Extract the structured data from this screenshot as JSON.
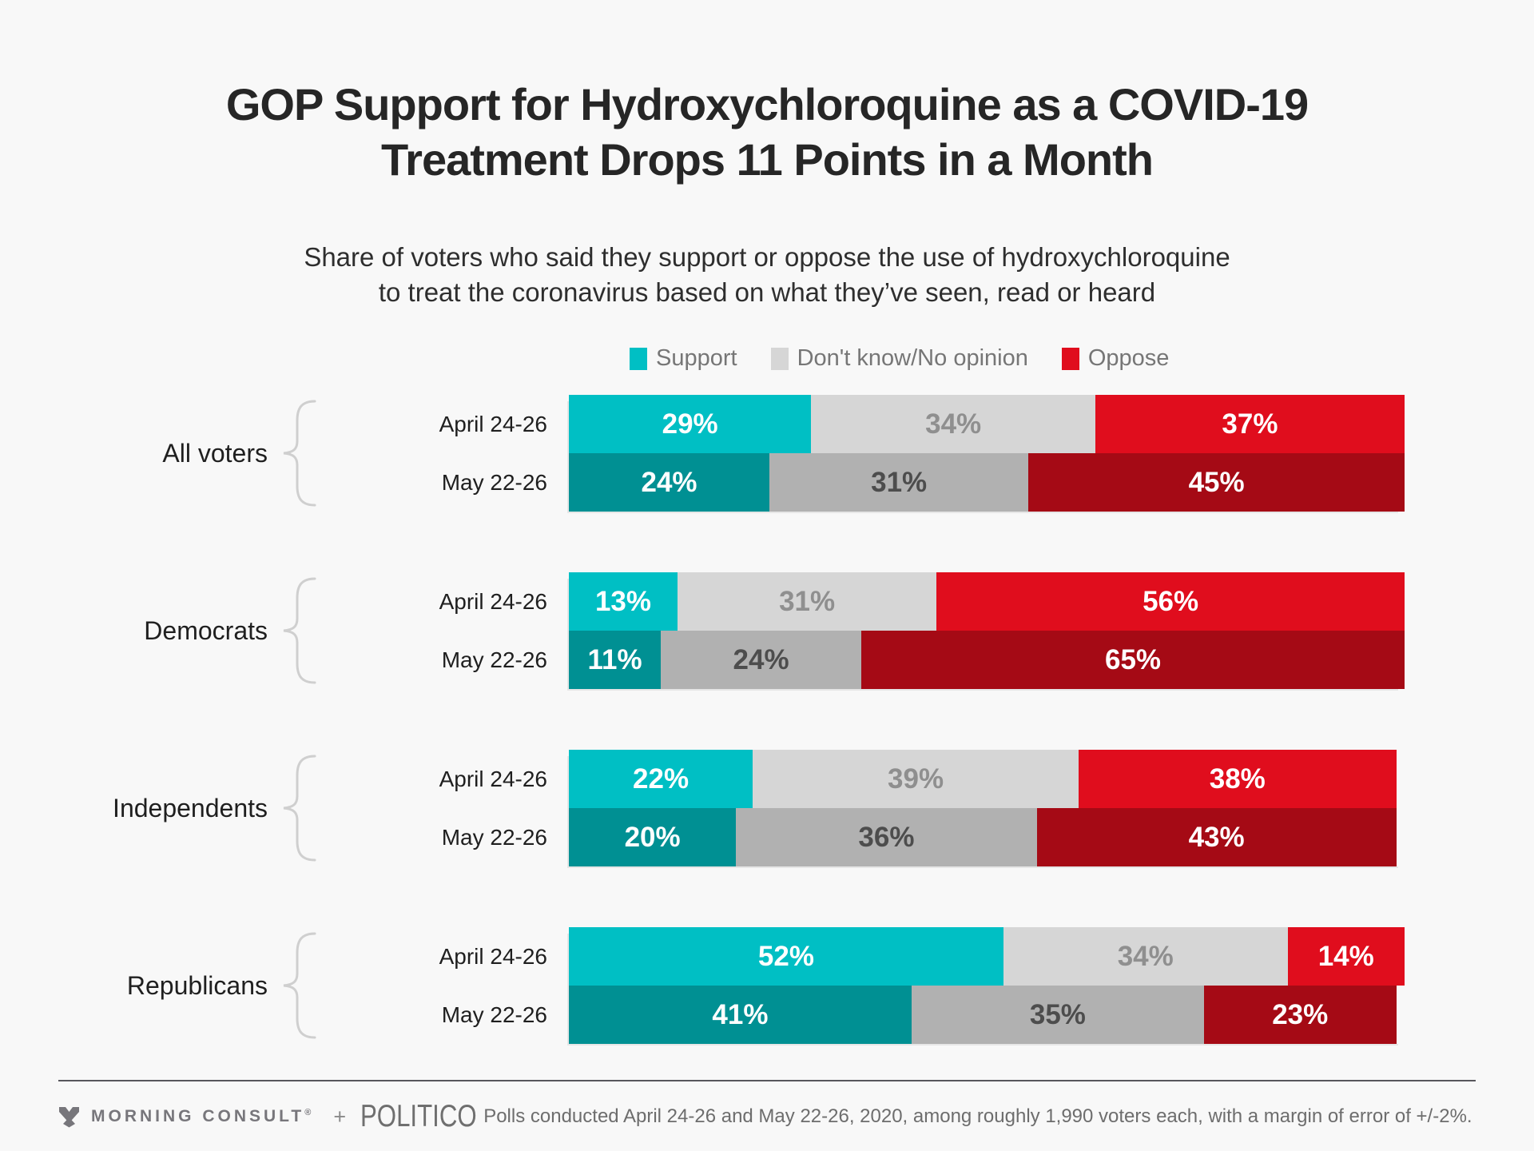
{
  "page": {
    "background": "#f8f8f8"
  },
  "title": {
    "line1": "GOP Support for Hydroxychloroquine as a COVID-19",
    "line2": "Treatment Drops 11 Points in a Month"
  },
  "subtitle": {
    "line1": "Share of voters who said they support or oppose the use of hydroxychloroquine",
    "line2": "to treat the coronavirus based on what they’ve seen, read or heard"
  },
  "legend": {
    "items": [
      {
        "label": "Support",
        "color": "#00bfc4"
      },
      {
        "label": "Don't know/No opinion",
        "color": "#d6d6d6"
      },
      {
        "label": "Oppose",
        "color": "#e00d1d"
      }
    ]
  },
  "chart_data": {
    "type": "bar",
    "variant": "horizontal-stacked",
    "xlim": [
      0,
      100
    ],
    "value_suffix": "%",
    "series_names": [
      "Support",
      "Don't know/No opinion",
      "Oppose"
    ],
    "categories": [
      "All voters",
      "Democrats",
      "Independents",
      "Republicans"
    ],
    "waves": [
      "April 24-26",
      "May 22-26"
    ],
    "groups": [
      {
        "label": "All voters",
        "rows": [
          {
            "date": "April 24-26",
            "values": [
              29,
              34,
              37
            ]
          },
          {
            "date": "May 22-26",
            "values": [
              24,
              31,
              45
            ]
          }
        ]
      },
      {
        "label": "Democrats",
        "rows": [
          {
            "date": "April 24-26",
            "values": [
              13,
              31,
              56
            ]
          },
          {
            "date": "May 22-26",
            "values": [
              11,
              24,
              65
            ]
          }
        ]
      },
      {
        "label": "Independents",
        "rows": [
          {
            "date": "April 24-26",
            "values": [
              22,
              39,
              38
            ]
          },
          {
            "date": "May 22-26",
            "values": [
              20,
              36,
              43
            ]
          }
        ]
      },
      {
        "label": "Republicans",
        "rows": [
          {
            "date": "April 24-26",
            "values": [
              52,
              34,
              14
            ]
          },
          {
            "date": "May 22-26",
            "values": [
              41,
              35,
              23
            ]
          }
        ]
      }
    ],
    "colors": {
      "april": [
        "#00bfc4",
        "#d6d6d6",
        "#e00d1d"
      ],
      "may": [
        "#009093",
        "#b1b1b1",
        "#a50a15"
      ],
      "april_label": [
        "#ffffff",
        "#8f8f8f",
        "#ffffff"
      ],
      "may_label": [
        "#ffffff",
        "#4d4d4d",
        "#ffffff"
      ],
      "brace": "#cfcfcf"
    }
  },
  "footer": {
    "brand1": "MORNING CONSULT",
    "reg": "®",
    "plus": "+",
    "brand2": "POLITICO",
    "note": "Polls conducted April 24-26 and May 22-26, 2020, among roughly 1,990 voters each, with a margin of error of +/-2%."
  }
}
